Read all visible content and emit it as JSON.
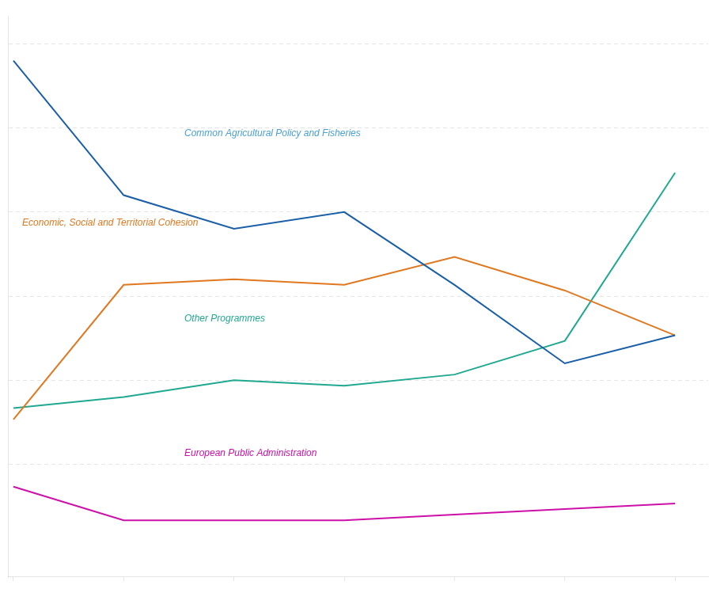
{
  "chart_data": {
    "type": "line",
    "x": [
      0,
      1,
      2,
      3,
      4,
      5,
      6
    ],
    "series": [
      {
        "name": "Common Agricultural Policy and Fisheries",
        "color": "#1a5fa8",
        "values": [
          92,
          68,
          62,
          65,
          52,
          38,
          43
        ]
      },
      {
        "name": "Economic, Social and Territorial Cohesion",
        "color": "#e07820",
        "values": [
          28,
          52,
          53,
          52,
          57,
          51,
          43
        ]
      },
      {
        "name": "Other Programmes",
        "color": "#20a890",
        "values": [
          30,
          32,
          35,
          34,
          36,
          42,
          72
        ]
      },
      {
        "name": "European Public Administration",
        "color": "#cc10a8",
        "values": [
          16,
          10,
          10,
          10,
          11,
          12,
          13
        ]
      }
    ],
    "annotations": [
      {
        "text": "Common Agricultural Policy and Fisheries",
        "x": 1.55,
        "y": 79,
        "color": "#4a9fd4"
      },
      {
        "text": "Economic, Social and Territorial Cohesion",
        "x": 0.08,
        "y": 63,
        "color": "#e07820"
      },
      {
        "text": "Other Programmes",
        "x": 1.55,
        "y": 46,
        "color": "#20a890"
      },
      {
        "text": "European Public Administration",
        "x": 1.55,
        "y": 22,
        "color": "#cc10a8"
      }
    ],
    "xlim": [
      -0.05,
      6.3
    ],
    "xticks": [
      0,
      1,
      2,
      3,
      4,
      5,
      6
    ],
    "ylim": [
      0,
      100
    ],
    "yticks": [
      20,
      35,
      50,
      65,
      80,
      95
    ],
    "grid": true,
    "tick_labels": false
  }
}
